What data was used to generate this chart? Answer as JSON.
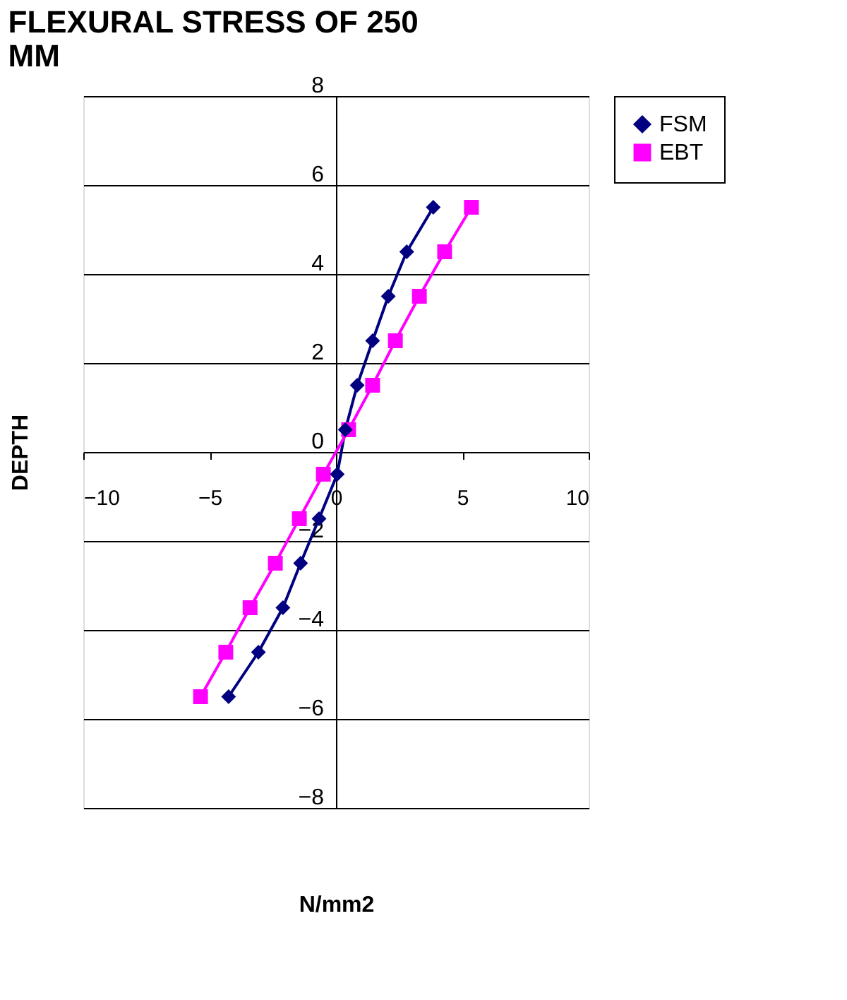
{
  "chart_data": {
    "type": "line",
    "title": "FLEXURAL STRESS OF 250 MM",
    "xlabel": "N/mm2",
    "ylabel": "DEPTH",
    "xlim": [
      -10,
      10
    ],
    "xticks": [
      -10,
      -5,
      0,
      5,
      10
    ],
    "ylim": [
      -8,
      8
    ],
    "yticks": [
      -8,
      -6,
      -4,
      -2,
      0,
      2,
      4,
      6,
      8
    ],
    "grid": "y",
    "legend": "right",
    "series": [
      {
        "name": "FSM",
        "color": "#000080",
        "marker": "diamond",
        "x": [
          3.85,
          2.8,
          2.07,
          1.45,
          0.84,
          0.37,
          0.05,
          -0.67,
          -1.4,
          -2.1,
          -3.07,
          -4.25
        ],
        "values": [
          5.5,
          4.5,
          3.5,
          2.5,
          1.5,
          0.5,
          -0.5,
          -1.5,
          -2.5,
          -3.5,
          -4.5,
          -5.5
        ]
      },
      {
        "name": "EBT",
        "color": "#ff00ff",
        "marker": "square",
        "x": [
          5.36,
          4.3,
          3.3,
          2.35,
          1.45,
          0.5,
          -0.5,
          -1.45,
          -2.4,
          -3.4,
          -4.36,
          -5.36
        ],
        "values": [
          5.5,
          4.5,
          3.5,
          2.5,
          1.5,
          0.5,
          -0.5,
          -1.5,
          -2.5,
          -3.5,
          -4.5,
          -5.5
        ]
      }
    ]
  }
}
